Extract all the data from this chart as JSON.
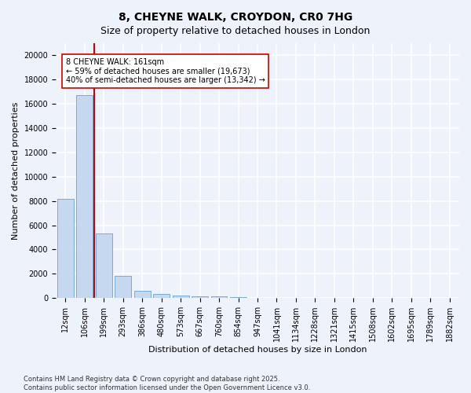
{
  "title": "8, CHEYNE WALK, CROYDON, CR0 7HG",
  "subtitle": "Size of property relative to detached houses in London",
  "xlabel": "Distribution of detached houses by size in London",
  "ylabel": "Number of detached properties",
  "categories": [
    "12sqm",
    "106sqm",
    "199sqm",
    "293sqm",
    "386sqm",
    "480sqm",
    "573sqm",
    "667sqm",
    "760sqm",
    "854sqm",
    "947sqm",
    "1041sqm",
    "1134sqm",
    "1228sqm",
    "1321sqm",
    "1415sqm",
    "1508sqm",
    "1602sqm",
    "1695sqm",
    "1789sqm",
    "1882sqm"
  ],
  "values": [
    8200,
    16700,
    5300,
    1800,
    600,
    330,
    220,
    170,
    120,
    50,
    0,
    0,
    0,
    0,
    0,
    0,
    0,
    0,
    0,
    0,
    0
  ],
  "bar_color": "#c5d8f0",
  "bar_edge_color": "#7aabdc",
  "background_color": "#eef2fb",
  "vline_color": "#cc0000",
  "vline_x": 1.5,
  "annotation_text_line1": "8 CHEYNE WALK: 161sqm",
  "annotation_text_line2": "← 59% of detached houses are smaller (19,673)",
  "annotation_text_line3": "40% of semi-detached houses are larger (13,342) →",
  "ylim": [
    0,
    21000
  ],
  "yticks": [
    0,
    2000,
    4000,
    6000,
    8000,
    10000,
    12000,
    14000,
    16000,
    18000,
    20000
  ],
  "footer_line1": "Contains HM Land Registry data © Crown copyright and database right 2025.",
  "footer_line2": "Contains public sector information licensed under the Open Government Licence v3.0.",
  "title_fontsize": 10,
  "subtitle_fontsize": 9,
  "tick_fontsize": 7,
  "ylabel_fontsize": 8,
  "xlabel_fontsize": 8,
  "annotation_fontsize": 7,
  "footer_fontsize": 6
}
